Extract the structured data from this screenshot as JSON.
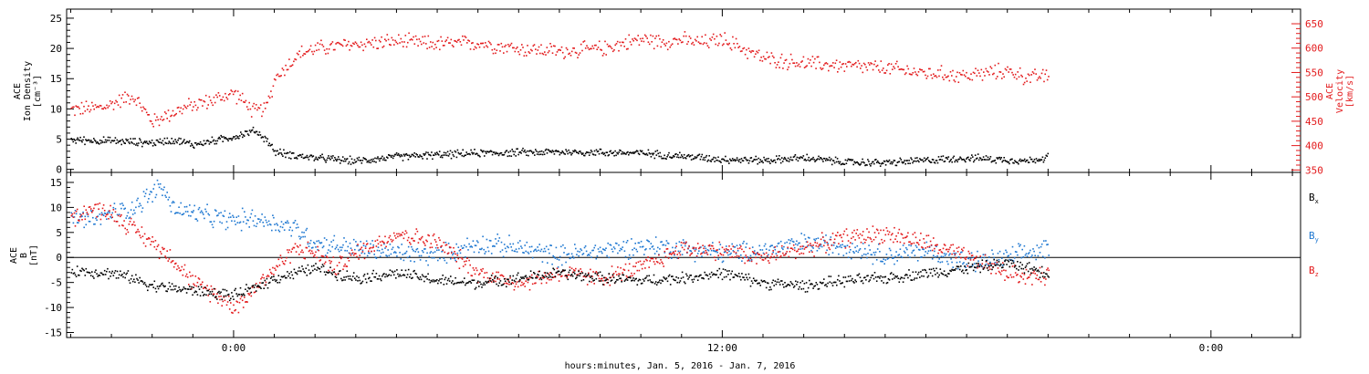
{
  "chart_data": [
    {
      "type": "scatter",
      "panel": "top",
      "xlabel": "hours:minutes, Jan.  5, 2016 - Jan.  7, 2016",
      "x_tick_labels": [
        "0:00",
        "12:00",
        "0:00"
      ],
      "x_tick_hours": [
        0,
        12,
        24
      ],
      "xlim_hours": [
        -4.1,
        26.2
      ],
      "data_end_hours": 20.0,
      "left_axis": {
        "label_lines": [
          "ACE",
          "Ion Density",
          "[cm⁻³]"
        ],
        "ylim": [
          -0.5,
          26.5
        ],
        "ticks": [
          0,
          5,
          10,
          15,
          20,
          25
        ],
        "color": "#000000"
      },
      "right_axis": {
        "label_lines": [
          "ACE",
          "Velocity",
          "[km/s]"
        ],
        "ylim": [
          345,
          680
        ],
        "ticks": [
          350,
          400,
          450,
          500,
          550,
          600,
          650
        ],
        "color": "#e31a1c"
      },
      "series": [
        {
          "key": "density",
          "color": "#000000",
          "axis": "left",
          "x": [
            -4,
            -3,
            -2,
            -1.5,
            -1,
            0,
            0.5,
            0.8,
            1,
            1.5,
            2,
            3,
            4,
            6,
            8,
            10,
            11,
            12,
            13,
            14,
            15,
            16,
            17,
            18,
            19,
            19.5,
            20
          ],
          "y": [
            5,
            4.8,
            4.5,
            5,
            4.2,
            5.5,
            6.5,
            5,
            3,
            2.4,
            2.0,
            1.5,
            2.2,
            2.8,
            3.0,
            2.8,
            2.3,
            1.8,
            1.6,
            2.0,
            1.3,
            1.2,
            1.6,
            2.0,
            1.7,
            1.5,
            2.2
          ]
        },
        {
          "key": "velocity",
          "color": "#e31a1c",
          "axis": "right",
          "x": [
            -4,
            -3.2,
            -2.5,
            -2,
            -1.5,
            -1,
            -0.5,
            0,
            0.5,
            0.8,
            1,
            1.3,
            1.6,
            2,
            3,
            4,
            5,
            6,
            7,
            8,
            9,
            10,
            10.5,
            11,
            11.5,
            12,
            12.5,
            13,
            14,
            15,
            16,
            17,
            18,
            19,
            19.5,
            20
          ],
          "y": [
            475,
            480,
            505,
            450,
            470,
            485,
            495,
            510,
            470,
            480,
            540,
            565,
            590,
            600,
            610,
            615,
            610,
            612,
            600,
            595,
            600,
            620,
            615,
            618,
            612,
            620,
            600,
            580,
            570,
            565,
            560,
            550,
            545,
            555,
            540,
            545
          ]
        }
      ]
    },
    {
      "type": "scatter",
      "panel": "bottom",
      "left_axis": {
        "label_lines": [
          "ACE",
          "B",
          "[nT]"
        ],
        "ylim": [
          -16,
          17
        ],
        "ticks": [
          -15,
          -10,
          -5,
          0,
          5,
          10,
          15
        ],
        "zero_line": true,
        "color": "#000000"
      },
      "legend": [
        {
          "label": "B",
          "sub": "x",
          "color": "#000000"
        },
        {
          "label": "B",
          "sub": "y",
          "color": "#1f78d1"
        },
        {
          "label": "B",
          "sub": "z",
          "color": "#e31a1c"
        }
      ],
      "legend_placement": "right",
      "series": [
        {
          "key": "bx",
          "name": "Bx",
          "color": "#000000",
          "x": [
            -4,
            -3,
            -2.5,
            -2,
            -1.5,
            -1,
            -0.5,
            0,
            0.5,
            1,
            1.5,
            2,
            3,
            4,
            5,
            6,
            7,
            8,
            9,
            10,
            11,
            12,
            13,
            14,
            15,
            16,
            17,
            18,
            19,
            20
          ],
          "y": [
            -2.5,
            -3,
            -4,
            -5.5,
            -6,
            -6.5,
            -7,
            -7.5,
            -6,
            -4,
            -3,
            -2,
            -4,
            -3,
            -4.5,
            -5,
            -4,
            -3,
            -4,
            -4.5,
            -4,
            -3,
            -5,
            -5.5,
            -4.5,
            -4,
            -3,
            -2,
            -1,
            -3
          ]
        },
        {
          "key": "by",
          "name": "By",
          "color": "#1f78d1",
          "x": [
            -4,
            -3.5,
            -3,
            -2.5,
            -2,
            -1.8,
            -1.5,
            -1,
            -0.5,
            0,
            0.5,
            1,
            1.5,
            2,
            3,
            4,
            5,
            6,
            7,
            8,
            9,
            10,
            11,
            12,
            13,
            14,
            15,
            16,
            17,
            18,
            19,
            20
          ],
          "y": [
            8,
            7.5,
            9,
            10,
            13,
            14.5,
            10,
            9,
            8,
            7.5,
            8,
            7,
            6,
            3,
            2,
            1,
            0.5,
            3,
            2,
            0.5,
            1.5,
            2.5,
            2,
            1,
            1.5,
            3,
            2.5,
            0.5,
            1.5,
            -1,
            0,
            2
          ]
        },
        {
          "key": "bz",
          "name": "Bz",
          "color": "#e31a1c",
          "x": [
            -4,
            -3.5,
            -3,
            -2.5,
            -2,
            -1.5,
            -1,
            -0.5,
            0,
            0.3,
            0.6,
            1,
            1.5,
            2,
            2.5,
            3,
            4,
            5,
            6,
            7,
            8,
            9,
            10,
            11,
            12,
            13,
            14,
            15,
            16,
            17,
            18,
            19,
            20
          ],
          "y": [
            8,
            10,
            9,
            6,
            3,
            0,
            -5,
            -7,
            -9.5,
            -8,
            -5,
            -2,
            2,
            1,
            -2,
            1,
            5,
            3,
            -3,
            -5,
            -3,
            -4,
            -2,
            2,
            1.5,
            0,
            2,
            4,
            5,
            3,
            0,
            -3,
            -4
          ]
        }
      ]
    }
  ]
}
